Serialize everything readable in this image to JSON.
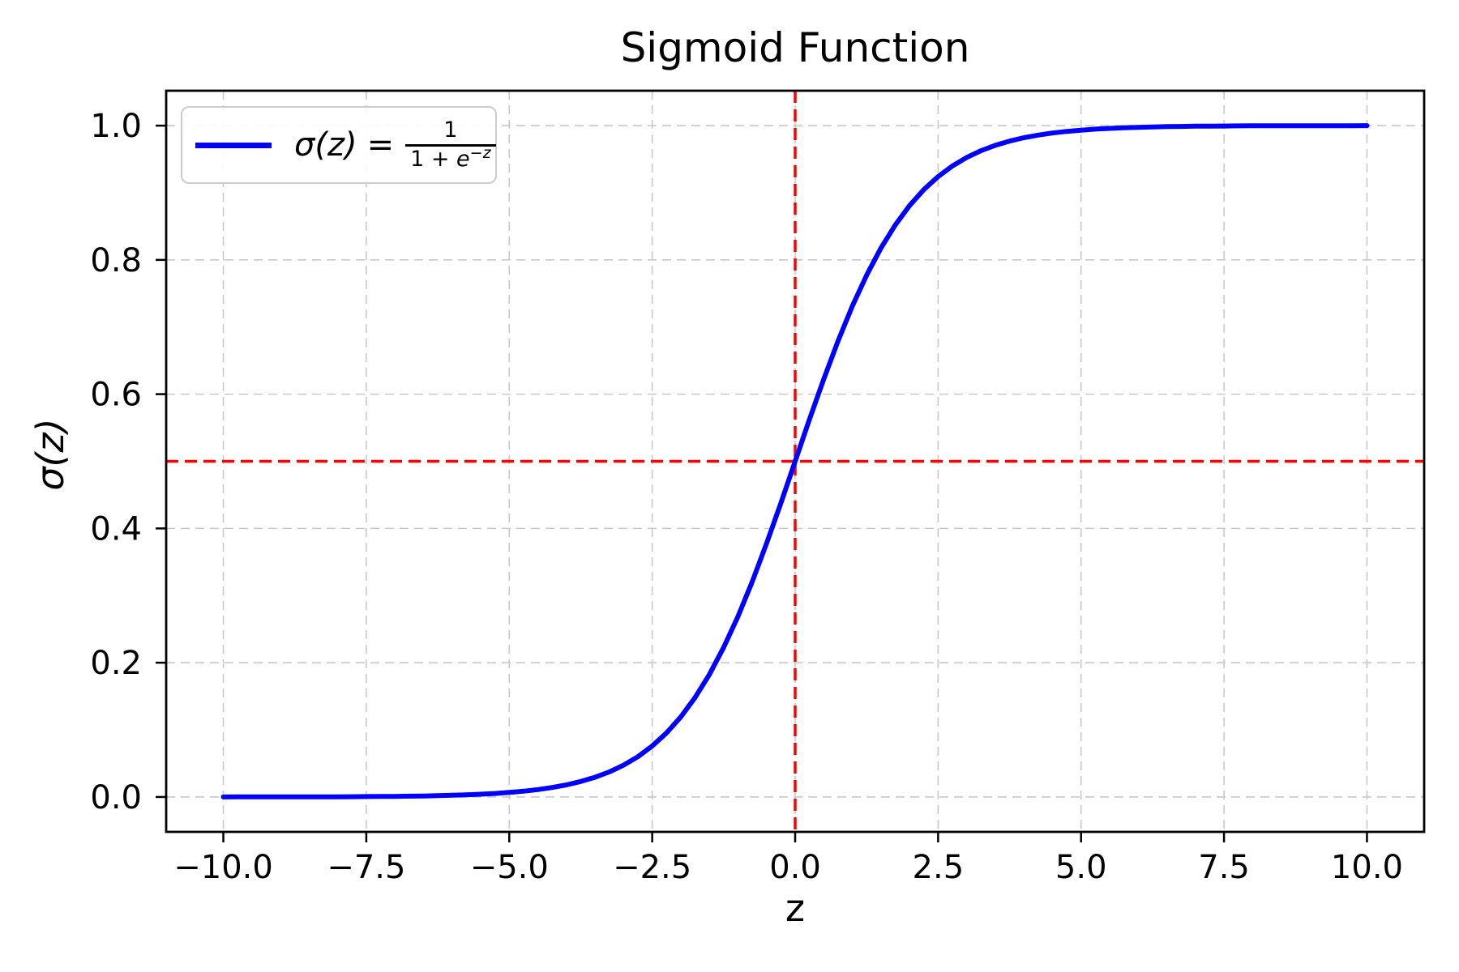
{
  "chart_data": {
    "type": "line",
    "title": "Sigmoid Function",
    "xlabel": "z",
    "ylabel": "σ(z)",
    "xlim": [
      -11,
      11
    ],
    "ylim": [
      -0.052,
      1.052
    ],
    "grid": true,
    "legend_position": "upper left",
    "x_ticks": [
      -10.0,
      -7.5,
      -5.0,
      -2.5,
      0.0,
      2.5,
      5.0,
      7.5,
      10.0
    ],
    "x_tick_labels": [
      "−10.0",
      "−7.5",
      "−5.0",
      "−2.5",
      "0.0",
      "2.5",
      "5.0",
      "7.5",
      "10.0"
    ],
    "y_ticks": [
      0.0,
      0.2,
      0.4,
      0.6,
      0.8,
      1.0
    ],
    "y_tick_labels": [
      "0.0",
      "0.2",
      "0.4",
      "0.6",
      "0.8",
      "1.0"
    ],
    "styles": {
      "curve_color": "#0000ff",
      "reference_color": "#ff0000",
      "grid_color": "#c8c8c8",
      "spine_color": "#000000",
      "text_color": "#000000",
      "axes_background": "#ffffff"
    },
    "series": [
      {
        "name": "sigmoid",
        "label": "σ(z) = 1 / (1 + e^(−z))",
        "color": "#0000ff",
        "x": [
          -10,
          -9.75,
          -9.5,
          -9.25,
          -9,
          -8.75,
          -8.5,
          -8.25,
          -8,
          -7.75,
          -7.5,
          -7.25,
          -7,
          -6.75,
          -6.5,
          -6.25,
          -6,
          -5.75,
          -5.5,
          -5.25,
          -5,
          -4.75,
          -4.5,
          -4.25,
          -4,
          -3.75,
          -3.5,
          -3.25,
          -3,
          -2.75,
          -2.5,
          -2.25,
          -2,
          -1.75,
          -1.5,
          -1.25,
          -1,
          -0.75,
          -0.5,
          -0.25,
          0,
          0.25,
          0.5,
          0.75,
          1,
          1.25,
          1.5,
          1.75,
          2,
          2.25,
          2.5,
          2.75,
          3,
          3.25,
          3.5,
          3.75,
          4,
          4.25,
          4.5,
          4.75,
          5,
          5.25,
          5.5,
          5.75,
          6,
          6.25,
          6.5,
          6.75,
          7,
          7.25,
          7.5,
          7.75,
          8,
          8.25,
          8.5,
          8.75,
          9,
          9.25,
          9.5,
          9.75,
          10
        ],
        "y": [
          0.0,
          0.0001,
          0.0001,
          0.0001,
          0.0001,
          0.0002,
          0.0002,
          0.0003,
          0.0003,
          0.0004,
          0.0006,
          0.0007,
          0.0009,
          0.0012,
          0.0015,
          0.0019,
          0.0025,
          0.0032,
          0.0041,
          0.0052,
          0.0067,
          0.0086,
          0.011,
          0.0141,
          0.018,
          0.023,
          0.0293,
          0.0373,
          0.0474,
          0.06,
          0.0759,
          0.0953,
          0.1192,
          0.148,
          0.1824,
          0.2227,
          0.2689,
          0.3208,
          0.3775,
          0.4378,
          0.5,
          0.5622,
          0.6225,
          0.6792,
          0.7311,
          0.7773,
          0.8176,
          0.852,
          0.8808,
          0.9047,
          0.9241,
          0.9399,
          0.9526,
          0.9627,
          0.9707,
          0.977,
          0.982,
          0.9859,
          0.989,
          0.9914,
          0.9933,
          0.9948,
          0.9959,
          0.9968,
          0.9975,
          0.9981,
          0.9985,
          0.9988,
          0.9991,
          0.9993,
          0.9994,
          0.9996,
          0.9997,
          0.9997,
          0.9998,
          0.9998,
          0.9999,
          0.9999,
          0.9999,
          0.9999,
          1.0
        ]
      }
    ],
    "reference_lines": [
      {
        "orientation": "vertical",
        "value": 0,
        "color": "#ff0000",
        "style": "dashed"
      },
      {
        "orientation": "horizontal",
        "value": 0.5,
        "color": "#ff0000",
        "style": "dashed"
      }
    ],
    "legend": {
      "sigma_expr": "σ(z)",
      "equals": "=",
      "numerator": "1",
      "denominator_pre": "1 + ",
      "denominator_e": "e",
      "denominator_sup": "−z"
    }
  }
}
